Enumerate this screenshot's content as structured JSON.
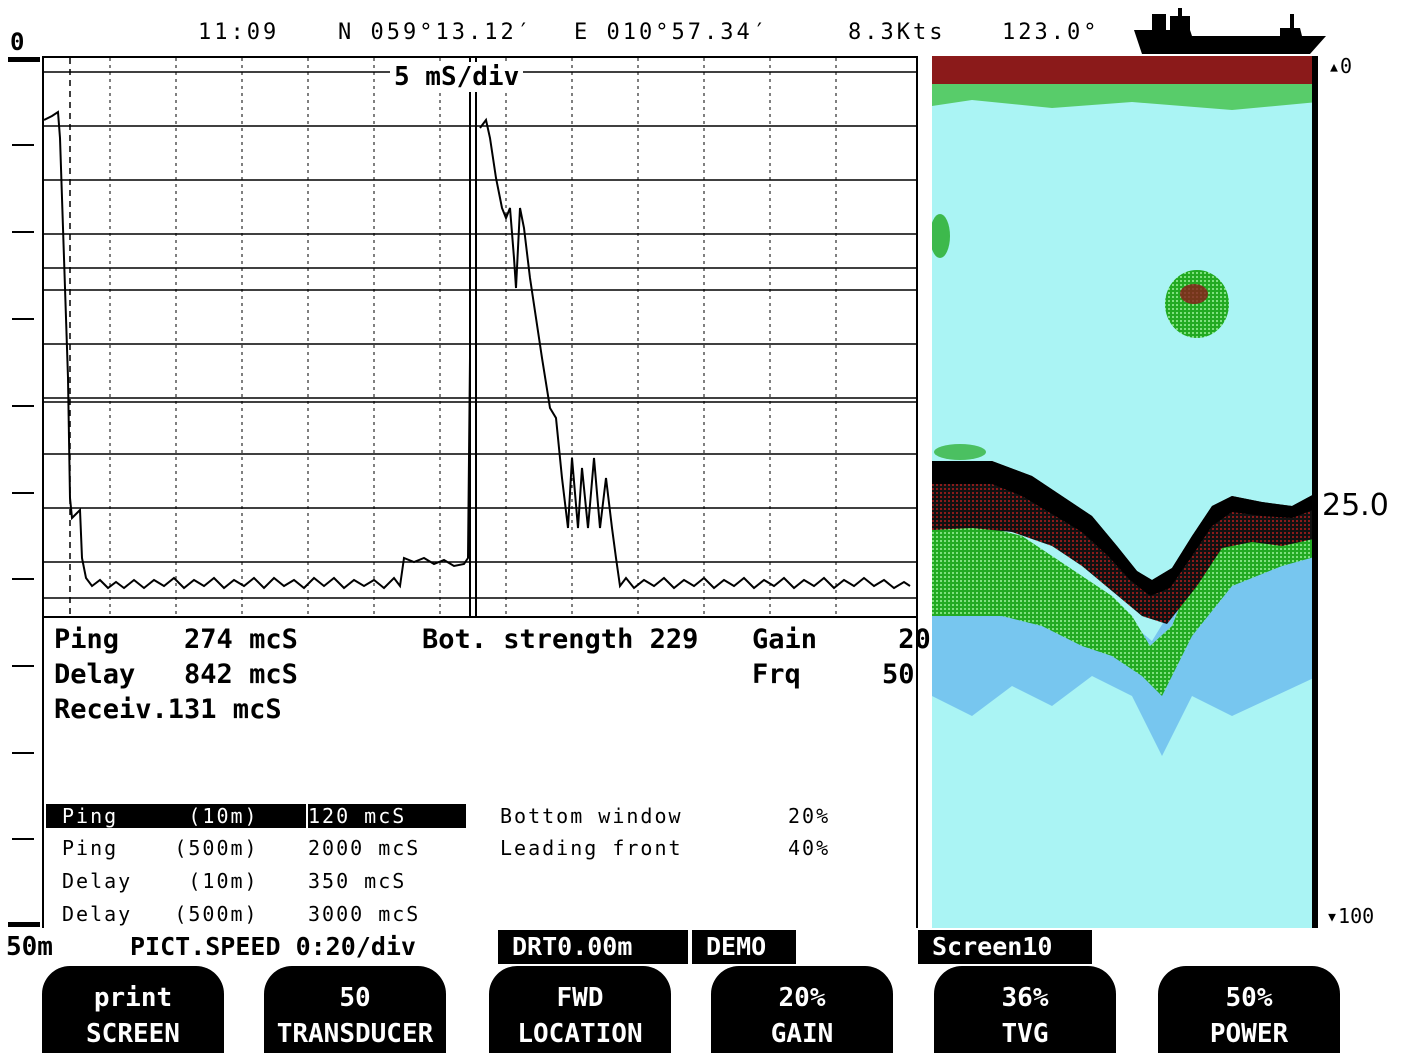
{
  "header": {
    "time": "11:09",
    "latitude": "N 059°13.12′",
    "longitude": "E 010°57.34′",
    "speed": "8.3Kts",
    "heading": "123.0°",
    "ship_icon": "ship-icon"
  },
  "left_scale": {
    "top_label": "0",
    "bottom_label": "50m"
  },
  "scope": {
    "title": "5 mS/div"
  },
  "readouts": {
    "ping": "Ping    274 mcS",
    "delay": "Delay   842 mcS",
    "receiv": "Receiv.131 mcS",
    "bot_strength": "Bot. strength 229",
    "gain": "Gain     20",
    "frq": "Frq     50"
  },
  "settings": {
    "rows": [
      {
        "label": "Ping     (10m)",
        "value": "120 mcS"
      },
      {
        "label": "Ping    (500m)",
        "value": "2000 mcS"
      },
      {
        "label": "Delay    (10m)",
        "value": "350 mcS"
      },
      {
        "label": "Delay   (500m)",
        "value": "3000 mcS"
      }
    ],
    "bottom_window_label": "Bottom window",
    "bottom_window_value": "20%",
    "leading_front_label": "Leading front",
    "leading_front_value": "40%"
  },
  "echogram": {
    "scale_top": "0",
    "scale_mid": "25.0",
    "scale_bottom": "100",
    "colors": {
      "water": "#aaf4f4",
      "surface": "#8b1a1a",
      "fish": "#22bb22",
      "bottom": "#000000"
    }
  },
  "status": {
    "pict_speed": "PICT.SPEED 0:20/div",
    "drt": "DRT0.00m",
    "mode": "DEMO",
    "screen": "Screen10"
  },
  "softkeys": [
    {
      "top": "print",
      "bottom": "SCREEN"
    },
    {
      "top": "50",
      "bottom": "TRANSDUCER"
    },
    {
      "top": "FWD",
      "bottom": "LOCATION"
    },
    {
      "top": "20%",
      "bottom": "GAIN"
    },
    {
      "top": "36%",
      "bottom": "TVG"
    },
    {
      "top": "50%",
      "bottom": "POWER"
    }
  ]
}
